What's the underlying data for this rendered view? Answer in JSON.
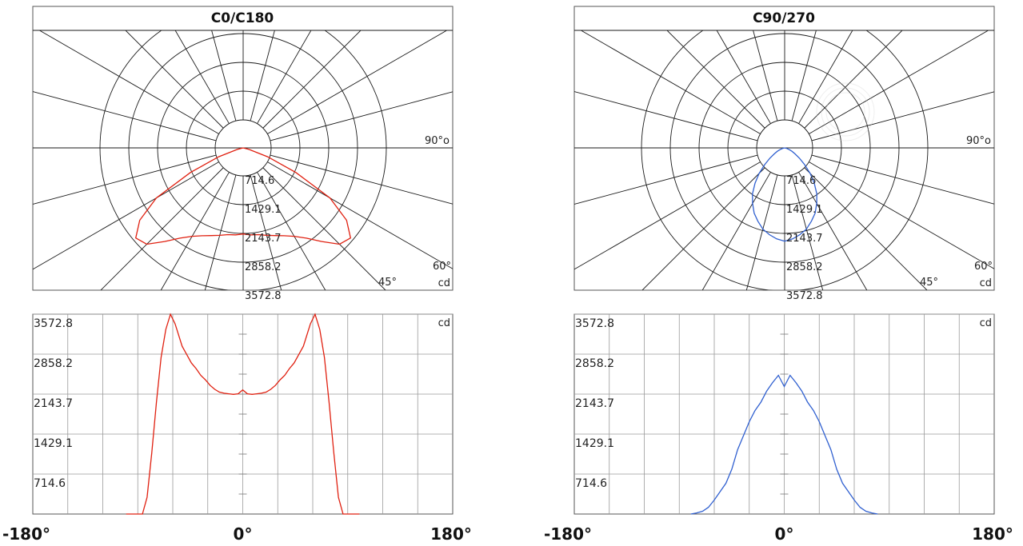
{
  "chart_data": [
    {
      "type": "polar",
      "title": "C0/C180",
      "unit_label": "cd",
      "radial_ticks": [
        "714.6",
        "1429.1",
        "2143.7",
        "2858.2",
        "3572.8"
      ],
      "angle_labels": [
        "90°o",
        "60°",
        "45°"
      ],
      "color": "#e02010",
      "curve": {
        "angles_deg": [
          -80,
          -75,
          -70,
          -65,
          -60,
          -55,
          -50,
          -45,
          -40,
          -35,
          -30,
          -25,
          -20,
          -15,
          -10,
          -5,
          0,
          5,
          10,
          15,
          20,
          25,
          30,
          35,
          40,
          45,
          50,
          55,
          60,
          65,
          70,
          75,
          80
        ],
        "values_cd": [
          0,
          150,
          650,
          1450,
          2500,
          3150,
          3500,
          3400,
          3050,
          2750,
          2550,
          2420,
          2330,
          2260,
          2200,
          2180,
          2150,
          2180,
          2200,
          2260,
          2330,
          2420,
          2550,
          2750,
          3050,
          3400,
          3500,
          3150,
          2500,
          1450,
          650,
          150,
          0
        ]
      }
    },
    {
      "type": "line",
      "unit_label": "cd",
      "y_ticks": [
        "3572.8",
        "2858.2",
        "2143.7",
        "1429.1",
        "714.6"
      ],
      "x_ticks": [
        "-180°",
        "0°",
        "180°"
      ],
      "xlim": [
        -180,
        180
      ],
      "ylim": [
        0,
        3572.8
      ],
      "color": "#e02010",
      "series": [
        {
          "x": [
            -100,
            -90,
            -86,
            -82,
            -78,
            -74,
            -70,
            -66,
            -62,
            -58,
            -55,
            -52,
            -48,
            -44,
            -40,
            -36,
            -32,
            -28,
            -24,
            -20,
            -16,
            -12,
            -8,
            -4,
            0,
            4,
            8,
            12,
            16,
            20,
            24,
            28,
            32,
            36,
            40,
            44,
            48,
            52,
            55,
            58,
            62,
            66,
            70,
            74,
            78,
            82,
            86,
            90,
            100
          ],
          "y": [
            0,
            0,
            0,
            300,
            1100,
            2000,
            2800,
            3300,
            3572,
            3400,
            3200,
            3000,
            2850,
            2700,
            2600,
            2480,
            2400,
            2300,
            2230,
            2180,
            2160,
            2150,
            2140,
            2150,
            2220,
            2150,
            2140,
            2150,
            2160,
            2180,
            2230,
            2300,
            2400,
            2480,
            2600,
            2700,
            2850,
            3000,
            3200,
            3400,
            3572,
            3300,
            2800,
            2000,
            1100,
            300,
            0,
            0,
            0
          ]
        }
      ]
    },
    {
      "type": "polar",
      "title": "C90/270",
      "unit_label": "cd",
      "radial_ticks": [
        "714.6",
        "1429.1",
        "2143.7",
        "2858.2",
        "3572.8"
      ],
      "angle_labels": [
        "90°o",
        "60°",
        "45°"
      ],
      "color": "#3060d0",
      "curve": {
        "angles_deg": [
          -80,
          -75,
          -70,
          -65,
          -60,
          -55,
          -50,
          -45,
          -40,
          -35,
          -30,
          -25,
          -20,
          -15,
          -10,
          -5,
          0,
          5,
          10,
          15,
          20,
          25,
          30,
          35,
          40,
          45,
          50,
          55,
          60,
          65,
          70,
          75,
          80
        ],
        "values_cd": [
          0,
          60,
          120,
          200,
          300,
          450,
          650,
          900,
          1150,
          1400,
          1600,
          1800,
          1950,
          2100,
          2200,
          2280,
          2330,
          2280,
          2200,
          2100,
          1950,
          1800,
          1600,
          1400,
          1150,
          900,
          650,
          450,
          300,
          200,
          120,
          60,
          0
        ]
      }
    },
    {
      "type": "line",
      "unit_label": "cd",
      "y_ticks": [
        "3572.8",
        "2858.2",
        "2143.7",
        "1429.1",
        "714.6"
      ],
      "x_ticks": [
        "-180°",
        "0°",
        "180°"
      ],
      "xlim": [
        -180,
        180
      ],
      "ylim": [
        0,
        3572.8
      ],
      "color": "#3060d0",
      "series": [
        {
          "x": [
            -80,
            -75,
            -70,
            -65,
            -60,
            -55,
            -50,
            -45,
            -40,
            -35,
            -30,
            -25,
            -20,
            -15,
            -10,
            -5,
            0,
            5,
            10,
            15,
            20,
            25,
            30,
            35,
            40,
            45,
            50,
            55,
            60,
            65,
            70,
            75,
            80
          ],
          "y": [
            0,
            20,
            50,
            120,
            250,
            400,
            550,
            800,
            1150,
            1400,
            1650,
            1850,
            2000,
            2200,
            2350,
            2480,
            2280,
            2480,
            2350,
            2200,
            2000,
            1850,
            1650,
            1400,
            1150,
            800,
            550,
            400,
            250,
            120,
            50,
            20,
            0
          ]
        }
      ]
    }
  ]
}
